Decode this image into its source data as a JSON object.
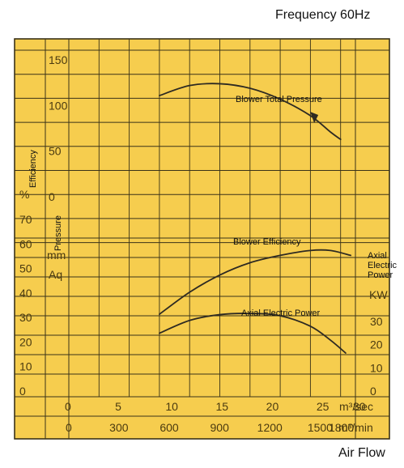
{
  "header": {
    "frequency": "Frequency 60Hz"
  },
  "footer": {
    "x_axis_label": "Air Flow"
  },
  "colors": {
    "background": "#f6cd4e",
    "grid": "#3a3218",
    "curve": "#2e2a22"
  },
  "chart_data": {
    "type": "line",
    "xlim": [
      0,
      30
    ],
    "grid": true,
    "x_ticks_primary": [
      "0",
      "5",
      "10",
      "15",
      "20",
      "25",
      "30"
    ],
    "x_primary_unit": "m³/sec",
    "x_ticks_secondary": [
      "0",
      "300",
      "600",
      "900",
      "1200",
      "1500",
      "1800"
    ],
    "x_secondary_unit": "m³/min",
    "left_axis_labels": {
      "efficiency": "Efficiency",
      "efficiency_unit": "%",
      "pressure": "Pressure",
      "pressure_unit_1": "mm",
      "pressure_unit_2": "Aq"
    },
    "pressure_ticks": [
      "150",
      "100",
      "50",
      "0"
    ],
    "pressure_ylim": [
      0,
      150
    ],
    "efficiency_ticks": [
      "70",
      "60",
      "50",
      "40",
      "30",
      "20",
      "10",
      "0"
    ],
    "efficiency_ylim": [
      0,
      70
    ],
    "right_axis_label": [
      "Axial",
      "Electric",
      "Power"
    ],
    "right_axis_unit": "KW",
    "power_ticks": [
      "30",
      "20",
      "10",
      "0"
    ],
    "power_ylim": [
      0,
      40
    ],
    "series": [
      {
        "name": "Blower Total Pressure",
        "axis": "pressure",
        "x": [
          9,
          12,
          15,
          18,
          21,
          24,
          26,
          27
        ],
        "y": [
          110,
          121,
          123,
          118,
          106,
          88,
          70,
          62
        ]
      },
      {
        "name": "Blower Efficiency",
        "axis": "efficiency",
        "x": [
          9,
          12,
          15,
          18,
          21,
          24,
          26,
          28
        ],
        "y": [
          31,
          40,
          47,
          52,
          55,
          57,
          57,
          55
        ]
      },
      {
        "name": "Axial Electric Power",
        "axis": "power",
        "x": [
          9,
          12,
          15,
          18,
          21,
          24,
          26,
          27.5
        ],
        "y": [
          24.5,
          30,
          32.5,
          33,
          32,
          27.5,
          21.5,
          16
        ]
      }
    ]
  }
}
